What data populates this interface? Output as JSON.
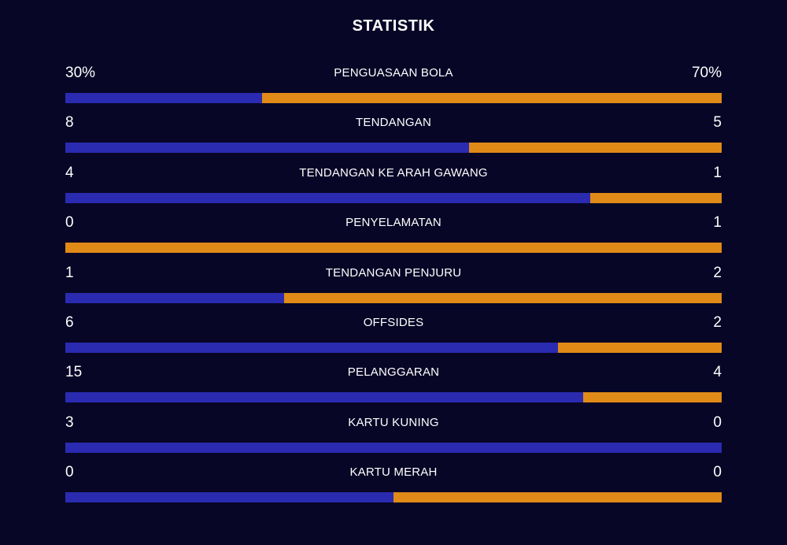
{
  "title": "STATISTIK",
  "colors": {
    "background": "#080626",
    "home": "#2a2bb0",
    "away": "#e08a17",
    "text": "#ffffff"
  },
  "stats": [
    {
      "key": "possession",
      "label": "PENGUASAAN BOLA",
      "home_display": "30%",
      "away_display": "70%",
      "home_share": 0.3
    },
    {
      "key": "shots",
      "label": "TENDANGAN",
      "home_display": "8",
      "away_display": "5",
      "home_share": 0.615
    },
    {
      "key": "shots_on_target",
      "label": "TENDANGAN KE ARAH GAWANG",
      "home_display": "4",
      "away_display": "1",
      "home_share": 0.8
    },
    {
      "key": "saves",
      "label": "PENYELAMATAN",
      "home_display": "0",
      "away_display": "1",
      "home_share": 0.0
    },
    {
      "key": "corners",
      "label": "TENDANGAN PENJURU",
      "home_display": "1",
      "away_display": "2",
      "home_share": 0.333
    },
    {
      "key": "offsides",
      "label": "OFFSIDES",
      "home_display": "6",
      "away_display": "2",
      "home_share": 0.75
    },
    {
      "key": "fouls",
      "label": "PELANGGARAN",
      "home_display": "15",
      "away_display": "4",
      "home_share": 0.789
    },
    {
      "key": "yellow_cards",
      "label": "KARTU KUNING",
      "home_display": "3",
      "away_display": "0",
      "home_share": 1.0
    },
    {
      "key": "red_cards",
      "label": "KARTU MERAH",
      "home_display": "0",
      "away_display": "0",
      "home_share": 0.5
    }
  ]
}
